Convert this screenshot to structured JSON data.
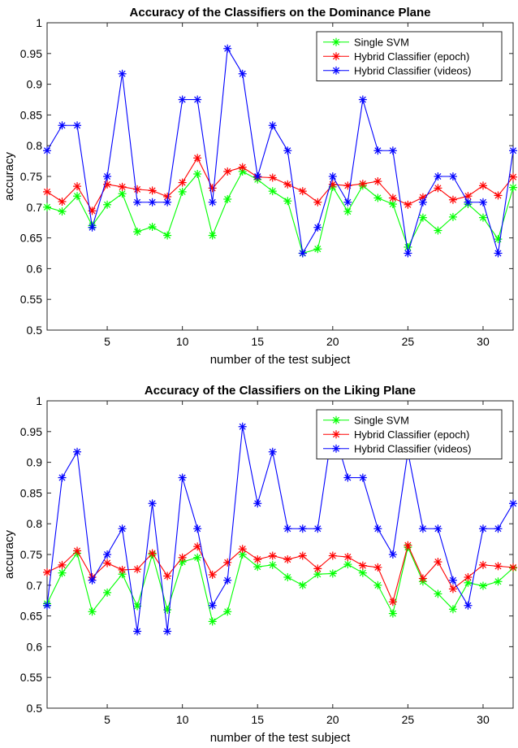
{
  "chart_data": [
    {
      "type": "line",
      "title": "Accuracy of the Classifiers on the Dominance Plane",
      "xlabel": "number of the test subject",
      "ylabel": "accuracy",
      "xlim": [
        1,
        32
      ],
      "ylim": [
        0.5,
        1
      ],
      "xticks": [
        5,
        10,
        15,
        20,
        25,
        30
      ],
      "yticks": [
        0.5,
        0.55,
        0.6,
        0.65,
        0.7,
        0.75,
        0.8,
        0.85,
        0.9,
        0.95,
        1
      ],
      "grid": true,
      "legend_position": "top-right",
      "x": [
        1,
        2,
        3,
        4,
        5,
        6,
        7,
        8,
        9,
        10,
        11,
        12,
        13,
        14,
        15,
        16,
        17,
        18,
        19,
        20,
        21,
        22,
        23,
        24,
        25,
        26,
        27,
        28,
        29,
        30,
        31,
        32
      ],
      "series": [
        {
          "name": "Single SVM",
          "color": "#00ff00",
          "marker": "asterisk",
          "values": [
            0.7,
            0.693,
            0.718,
            0.67,
            0.704,
            0.722,
            0.66,
            0.668,
            0.654,
            0.725,
            0.754,
            0.654,
            0.713,
            0.758,
            0.745,
            0.726,
            0.71,
            0.625,
            0.632,
            0.733,
            0.693,
            0.735,
            0.715,
            0.705,
            0.635,
            0.683,
            0.662,
            0.684,
            0.705,
            0.683,
            0.648,
            0.732
          ]
        },
        {
          "name": "Hybrid Classifier (epoch)",
          "color": "#ff0000",
          "marker": "asterisk",
          "values": [
            0.725,
            0.709,
            0.734,
            0.694,
            0.737,
            0.733,
            0.729,
            0.727,
            0.717,
            0.74,
            0.78,
            0.731,
            0.758,
            0.765,
            0.749,
            0.748,
            0.737,
            0.726,
            0.708,
            0.737,
            0.735,
            0.738,
            0.742,
            0.715,
            0.704,
            0.716,
            0.731,
            0.712,
            0.718,
            0.735,
            0.719,
            0.749
          ]
        },
        {
          "name": "Hybrid Classifier (videos)",
          "color": "#0000ff",
          "marker": "asterisk",
          "values": [
            0.792,
            0.833,
            0.833,
            0.667,
            0.75,
            0.917,
            0.708,
            0.708,
            0.708,
            0.875,
            0.875,
            0.708,
            0.958,
            0.917,
            0.75,
            0.833,
            0.792,
            0.625,
            0.667,
            0.75,
            0.708,
            0.875,
            0.792,
            0.792,
            0.625,
            0.708,
            0.75,
            0.75,
            0.708,
            0.708,
            0.625,
            0.792
          ]
        }
      ]
    },
    {
      "type": "line",
      "title": "Accuracy of the Classifiers on the Liking Plane",
      "xlabel": "number of the test subject",
      "ylabel": "accuracy",
      "xlim": [
        1,
        32
      ],
      "ylim": [
        0.5,
        1
      ],
      "xticks": [
        5,
        10,
        15,
        20,
        25,
        30
      ],
      "yticks": [
        0.5,
        0.55,
        0.6,
        0.65,
        0.7,
        0.75,
        0.8,
        0.85,
        0.9,
        0.95,
        1
      ],
      "grid": true,
      "legend_position": "top-right",
      "x": [
        1,
        2,
        3,
        4,
        5,
        6,
        7,
        8,
        9,
        10,
        11,
        12,
        13,
        14,
        15,
        16,
        17,
        18,
        19,
        20,
        21,
        22,
        23,
        24,
        25,
        26,
        27,
        28,
        29,
        30,
        31,
        32
      ],
      "series": [
        {
          "name": "Single SVM",
          "color": "#00ff00",
          "marker": "asterisk",
          "values": [
            0.67,
            0.72,
            0.752,
            0.657,
            0.688,
            0.718,
            0.666,
            0.75,
            0.66,
            0.738,
            0.745,
            0.641,
            0.657,
            0.75,
            0.73,
            0.733,
            0.713,
            0.7,
            0.718,
            0.719,
            0.734,
            0.72,
            0.7,
            0.654,
            0.762,
            0.706,
            0.686,
            0.661,
            0.704,
            0.699,
            0.706,
            0.728
          ]
        },
        {
          "name": "Hybrid Classifier (epoch)",
          "color": "#ff0000",
          "marker": "asterisk",
          "values": [
            0.721,
            0.733,
            0.756,
            0.713,
            0.736,
            0.725,
            0.726,
            0.752,
            0.715,
            0.745,
            0.763,
            0.717,
            0.737,
            0.759,
            0.742,
            0.748,
            0.742,
            0.748,
            0.727,
            0.748,
            0.746,
            0.732,
            0.729,
            0.673,
            0.765,
            0.711,
            0.738,
            0.694,
            0.713,
            0.733,
            0.731,
            0.729
          ]
        },
        {
          "name": "Hybrid Classifier (videos)",
          "color": "#0000ff",
          "marker": "asterisk",
          "values": [
            0.667,
            0.875,
            0.917,
            0.708,
            0.75,
            0.792,
            0.625,
            0.833,
            0.625,
            0.875,
            0.792,
            0.667,
            0.708,
            0.958,
            0.833,
            0.917,
            0.792,
            0.792,
            0.792,
            0.958,
            0.875,
            0.875,
            0.792,
            0.75,
            0.917,
            0.792,
            0.792,
            0.708,
            0.667,
            0.792,
            0.792,
            0.833
          ]
        }
      ]
    }
  ]
}
